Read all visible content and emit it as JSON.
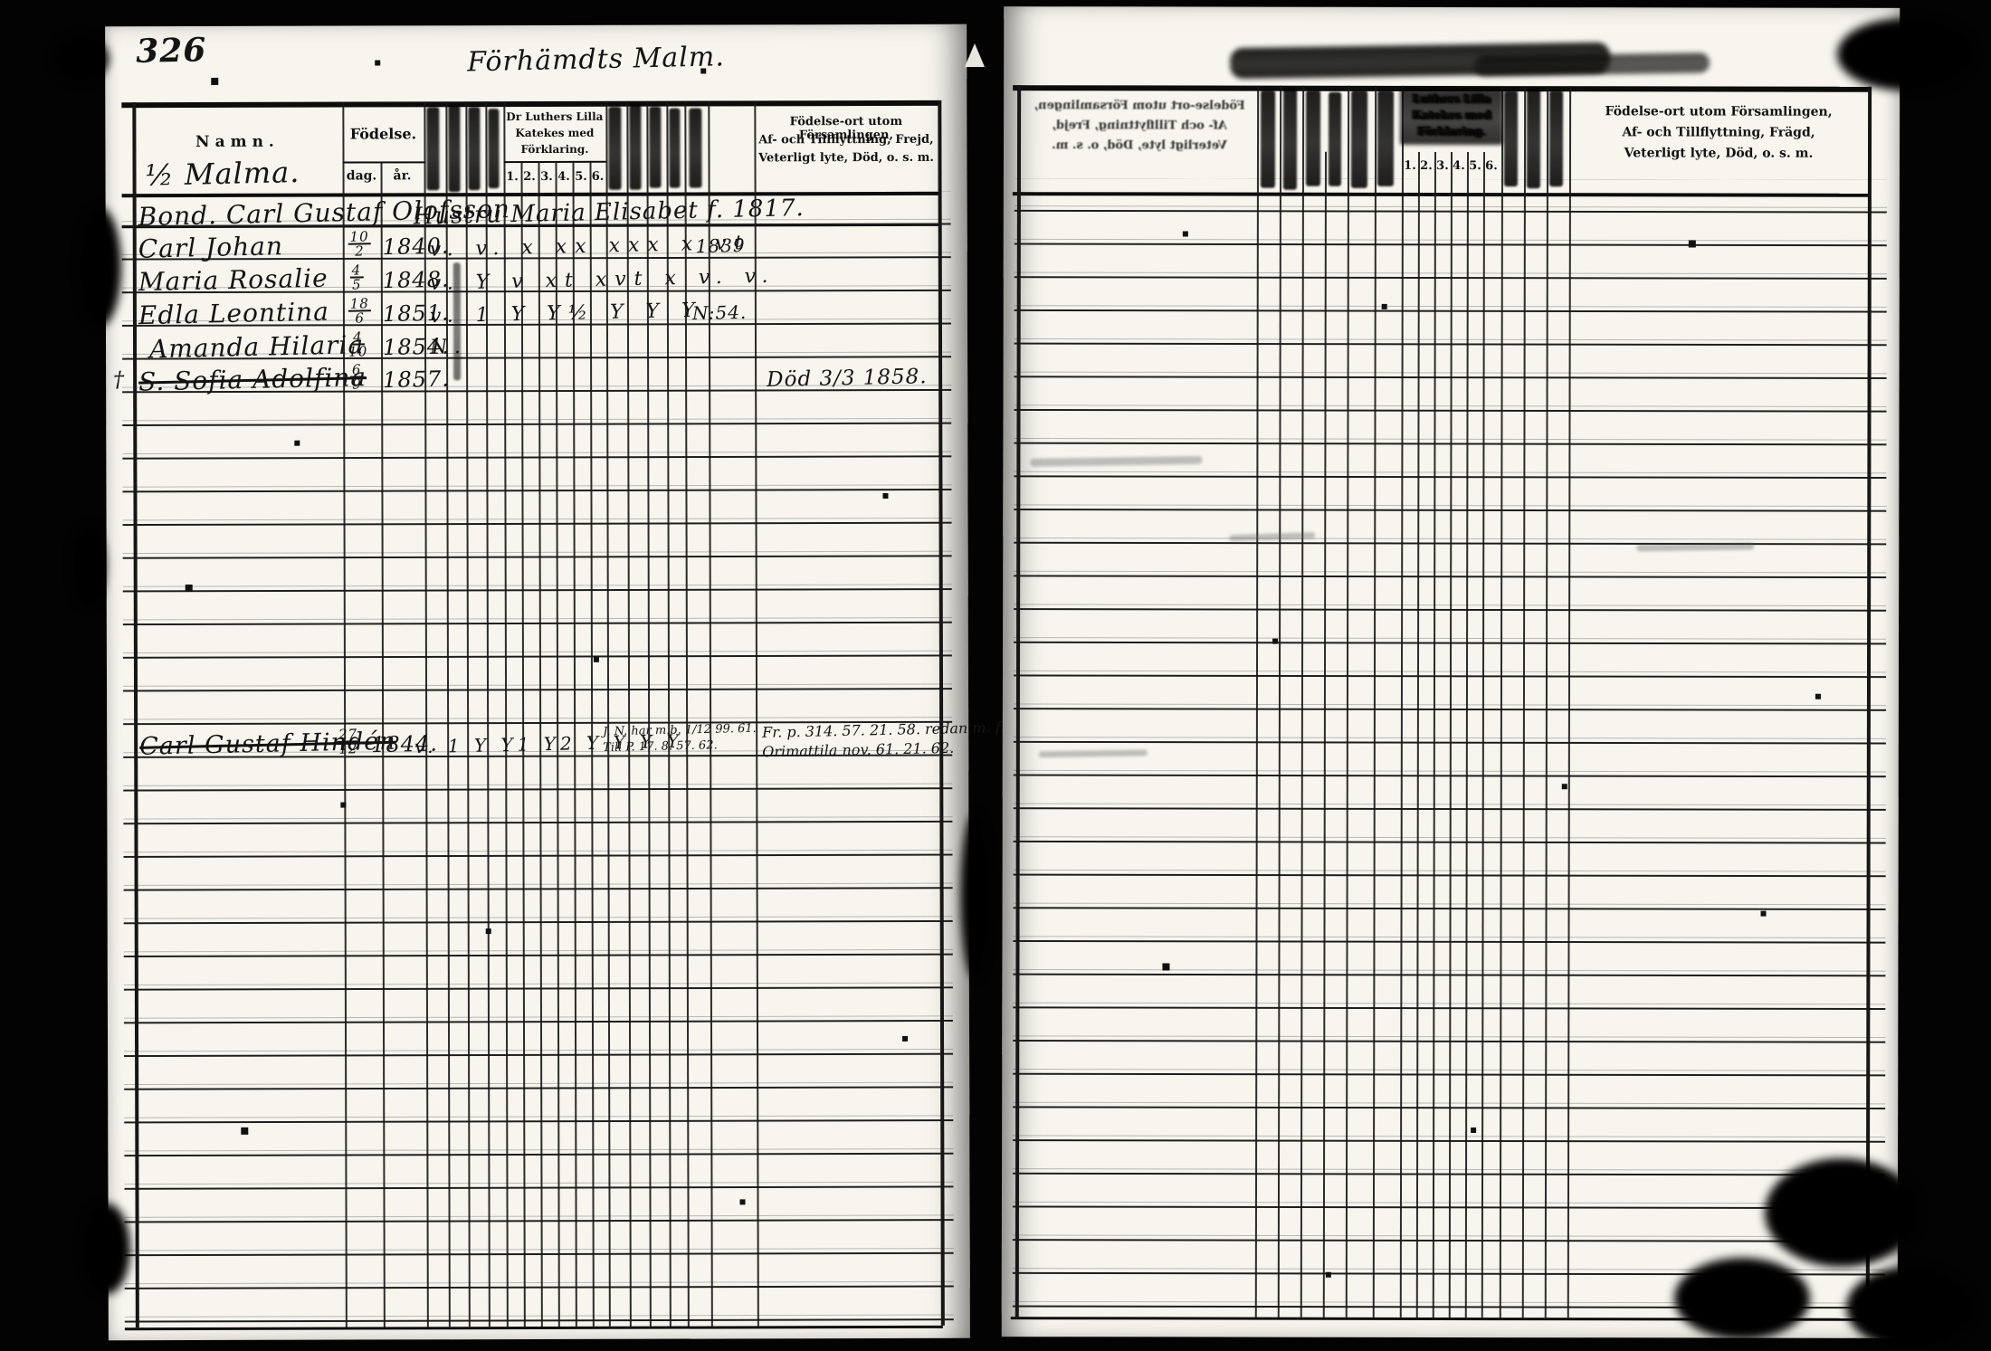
{
  "left_page": {
    "page_number": "326",
    "handwritten_title": "Förhämdts Malm.",
    "header": {
      "name": "Namn.",
      "birth": "Födelse.",
      "birth_day": "dag.",
      "birth_year": "år.",
      "catechism_lines": [
        "Dr Luthers Lilla",
        "Katekes med",
        "Förklaring."
      ],
      "catechism_cols": [
        "1.",
        "2.",
        "3.",
        "4.",
        "5.",
        "6."
      ],
      "notes_lines": [
        "Födelse-ort utom Församlingen,",
        "Af- och Tillflyttning, Frejd,",
        "Veterligt lyte, Död, o. s. m."
      ]
    },
    "household_label": "½ Malma.",
    "rows": [
      {
        "name": "Bond. Carl Gustaf Olofsson",
        "continuation": "Hustru Maria Elisabet f. 1817.",
        "day": "",
        "year": "",
        "marks": "",
        "annotation": "",
        "note": "",
        "margin_mark": ""
      },
      {
        "name": "Carl Johan",
        "day": "10/2",
        "year": "1840.",
        "marks": "v. v. x xx xxx x vt",
        "annotation": "1839",
        "note": "",
        "margin_mark": ""
      },
      {
        "name": "Maria Rosalie",
        "day": "4/5",
        "year": "1848.",
        "marks": "v. Y v xt xvt x v. v.",
        "annotation": "",
        "note": "",
        "margin_mark": ""
      },
      {
        "name": "Edla Leontina",
        "day": "18/6",
        "year": "1851.",
        "marks": "v. 1 Y Y½ Y Y Y",
        "annotation": "N:54.",
        "note": "",
        "margin_mark": ""
      },
      {
        "name": "Amanda Hilaria",
        "day": "4/10",
        "year": "1854.",
        "marks": "N.",
        "annotation": "",
        "note": "",
        "margin_mark": ""
      },
      {
        "name": "S. Sofia Adolfina",
        "day": "6/9",
        "year": "1857.",
        "marks": "",
        "annotation": "",
        "note": "Död 3/3 1858.",
        "margin_mark": "†"
      }
    ],
    "later_entry": {
      "name": "Carl Gustaf Hindén",
      "day": "27/12",
      "year": "1844.",
      "marks": "v. 1 Y Y1 Y2 Y Y Y Y",
      "small_notes": [
        "J. N. har m.b. 1/12 99. 61.",
        "Till P. 17. 8. 57. 62."
      ],
      "notes": [
        "Fr. p. 314. 57. 21. 58. redan m. f.",
        "Orimattila nov. 61. 21. 62."
      ]
    }
  },
  "right_page": {
    "bleed_lines": [
      "Födelse-ort utom Församlingen,",
      "Af- och Tillflyttning, Frejd,",
      "Veterligt lyte, Död, o. s. m."
    ],
    "header": {
      "catechism_lines": [
        "Luthers Lilla",
        "Katekes med",
        "Förklaring."
      ],
      "catechism_cols": [
        "1.",
        "2.",
        "3.",
        "4.",
        "5.",
        "6."
      ],
      "notes_lines": [
        "Födelse-ort utom Församlingen,",
        "Af- och Tillflyttning, Frägd,",
        "Veterligt lyte, Död, o. s. m."
      ]
    }
  }
}
